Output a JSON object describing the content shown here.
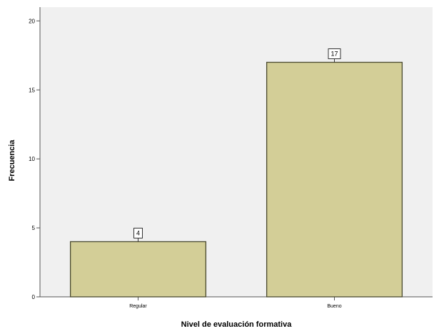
{
  "chart_data": {
    "type": "bar",
    "title": "",
    "xlabel": "Nivel de evaluación formativa",
    "ylabel": "Frecuencia",
    "categories": [
      "Regular",
      "Bueno"
    ],
    "values": [
      4,
      17
    ],
    "data_labels": [
      "4",
      "17"
    ],
    "ylim": [
      0,
      21
    ],
    "yticks": [
      0,
      5,
      10,
      15,
      20
    ],
    "grid": false,
    "legend": "none",
    "colors": {
      "plot_background": "#f0f0f0",
      "bar_fill": "#d3ce97",
      "bar_stroke": "#4a4a30",
      "axis": "#555555",
      "text": "#000000"
    }
  }
}
